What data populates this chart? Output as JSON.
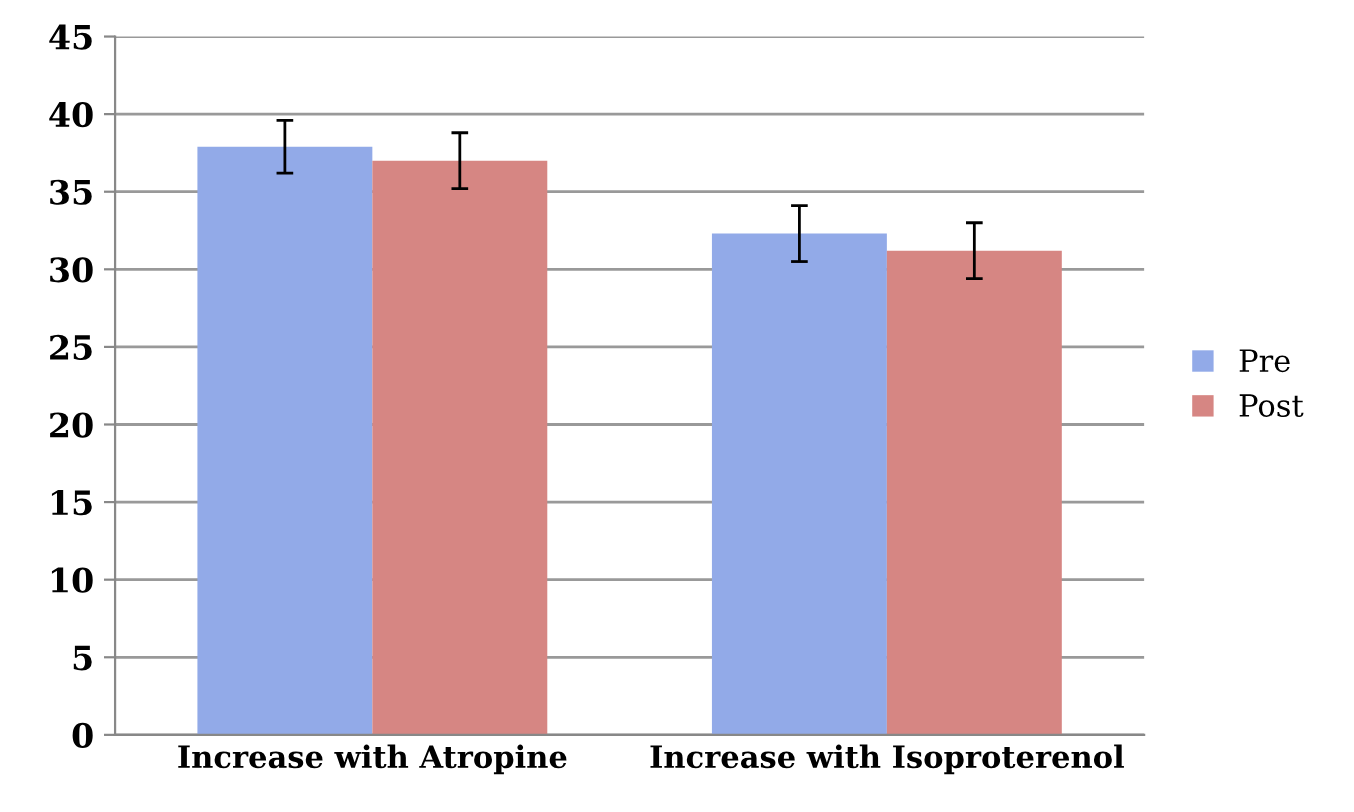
{
  "chart_data": {
    "type": "bar",
    "categories": [
      "Increase with Atropine",
      "Increase with Isoproterenol"
    ],
    "series": [
      {
        "name": "Pre",
        "color": "#92aae8",
        "values": [
          37.9,
          32.3
        ],
        "errors": [
          1.7,
          1.8
        ]
      },
      {
        "name": "Post",
        "color": "#d68683",
        "values": [
          37.0,
          31.2
        ],
        "errors": [
          1.8,
          1.8
        ]
      }
    ],
    "ylim": [
      0,
      45
    ],
    "yticks": [
      0,
      5,
      10,
      15,
      20,
      25,
      30,
      35,
      40,
      45
    ],
    "grid": "y",
    "legend": "right"
  }
}
